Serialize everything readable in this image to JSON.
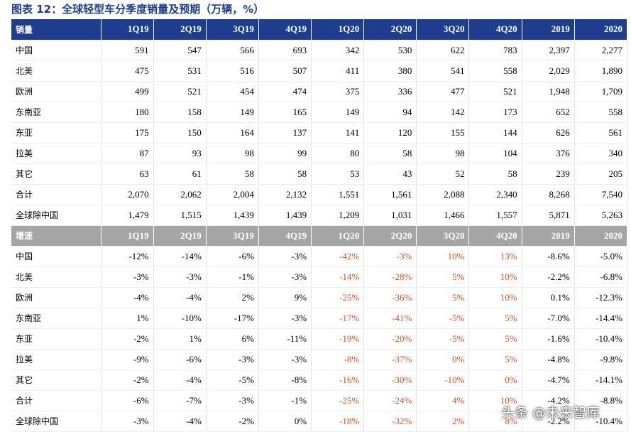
{
  "title": "图表 12：全球轻型车分季度销量及预期（万辆，%）",
  "sales": {
    "header": [
      "销量",
      "1Q19",
      "2Q19",
      "3Q19",
      "4Q19",
      "1Q20",
      "2Q20",
      "3Q20",
      "4Q20",
      "2019",
      "2020"
    ],
    "rows": [
      [
        "中国",
        "591",
        "547",
        "566",
        "693",
        "342",
        "530",
        "622",
        "783",
        "2,397",
        "2,277"
      ],
      [
        "北美",
        "475",
        "531",
        "516",
        "507",
        "411",
        "380",
        "541",
        "558",
        "2,029",
        "1,890"
      ],
      [
        "欧洲",
        "499",
        "521",
        "454",
        "474",
        "375",
        "336",
        "477",
        "521",
        "1,948",
        "1,709"
      ],
      [
        "东南亚",
        "180",
        "158",
        "149",
        "165",
        "149",
        "94",
        "142",
        "173",
        "652",
        "558"
      ],
      [
        "东亚",
        "175",
        "150",
        "164",
        "137",
        "141",
        "120",
        "155",
        "144",
        "626",
        "561"
      ],
      [
        "拉美",
        "87",
        "93",
        "98",
        "99",
        "80",
        "58",
        "98",
        "104",
        "376",
        "340"
      ],
      [
        "其它",
        "63",
        "61",
        "58",
        "58",
        "53",
        "43",
        "52",
        "58",
        "239",
        "205"
      ],
      [
        "合计",
        "2,070",
        "2,062",
        "2,004",
        "2,132",
        "1,551",
        "1,561",
        "2,088",
        "2,340",
        "8,268",
        "7,540"
      ],
      [
        "全球除中国",
        "1,479",
        "1,515",
        "1,439",
        "1,439",
        "1,209",
        "1,031",
        "1,466",
        "1,557",
        "5,871",
        "5,263"
      ]
    ]
  },
  "growth": {
    "header": [
      "增速",
      "1Q19",
      "2Q19",
      "3Q19",
      "4Q19",
      "1Q20",
      "2Q20",
      "3Q20",
      "4Q20",
      "2019",
      "2020"
    ],
    "rows": [
      [
        "中国",
        "-12%",
        "-14%",
        "-6%",
        "-3%",
        "-42%",
        "-3%",
        "10%",
        "13%",
        "-8.6%",
        "-5.0%"
      ],
      [
        "北美",
        "-3%",
        "-3%",
        "-1%",
        "-3%",
        "-14%",
        "-28%",
        "5%",
        "10%",
        "-2.2%",
        "-6.8%"
      ],
      [
        "欧洲",
        "-4%",
        "-4%",
        "2%",
        "9%",
        "-25%",
        "-36%",
        "5%",
        "10%",
        "0.1%",
        "-12.3%"
      ],
      [
        "东南亚",
        "1%",
        "-10%",
        "-17%",
        "-3%",
        "-17%",
        "-41%",
        "-5%",
        "5%",
        "-7.0%",
        "-14.4%"
      ],
      [
        "东亚",
        "-2%",
        "1%",
        "6%",
        "-11%",
        "-19%",
        "-20%",
        "-5%",
        "5%",
        "-1.6%",
        "-10.4%"
      ],
      [
        "拉美",
        "-9%",
        "-6%",
        "-3%",
        "-3%",
        "-8%",
        "-37%",
        "0%",
        "5%",
        "-4.8%",
        "-9.8%"
      ],
      [
        "其它",
        "-2%",
        "-4%",
        "-5%",
        "-8%",
        "-16%",
        "-30%",
        "-10%",
        "0%",
        "-4.7%",
        "-14.1%"
      ],
      [
        "合计",
        "-6%",
        "-7%",
        "-3%",
        "-1%",
        "-25%",
        "-24%",
        "4%",
        "10%",
        "-4.2%",
        "-8.8%"
      ],
      [
        "全球除中国",
        "-3%",
        "-4%",
        "-2%",
        "0%",
        "-18%",
        "-32%",
        "2%",
        "8%",
        "-2.2%",
        "-10.4%"
      ]
    ]
  },
  "watermark": "头条 @未来智库"
}
